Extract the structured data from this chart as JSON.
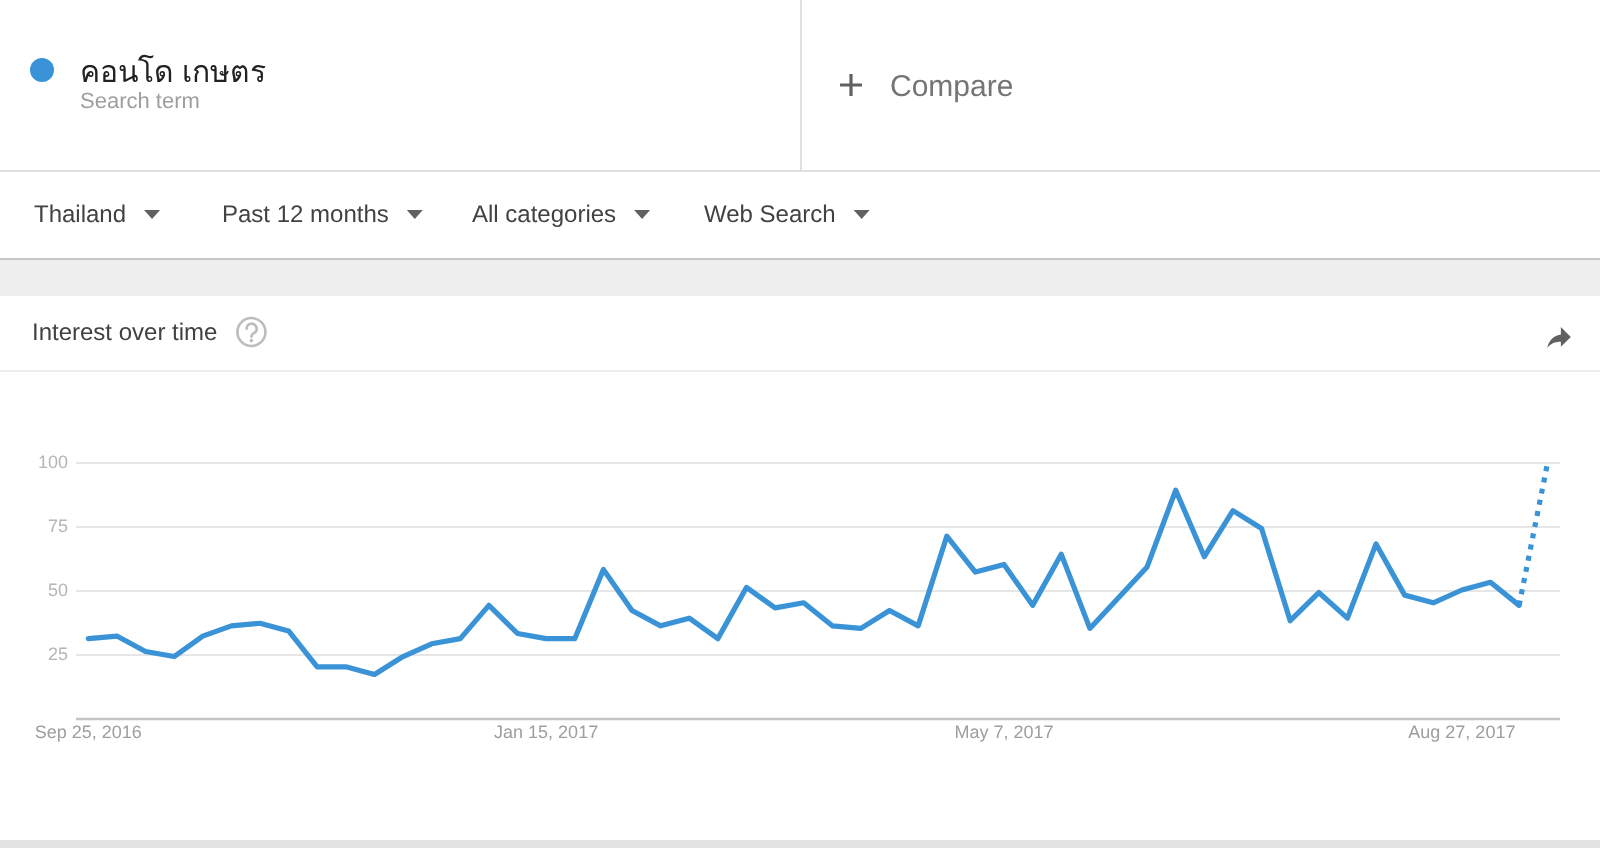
{
  "chart_data": {
    "type": "line",
    "title": "Interest over time",
    "x": [
      "2016-09-25",
      "2016-10-02",
      "2016-10-09",
      "2016-10-16",
      "2016-10-23",
      "2016-10-30",
      "2016-11-06",
      "2016-11-13",
      "2016-11-20",
      "2016-11-27",
      "2016-12-04",
      "2016-12-11",
      "2016-12-18",
      "2016-12-25",
      "2017-01-01",
      "2017-01-08",
      "2017-01-15",
      "2017-01-22",
      "2017-01-29",
      "2017-02-05",
      "2017-02-12",
      "2017-02-19",
      "2017-02-26",
      "2017-03-05",
      "2017-03-12",
      "2017-03-19",
      "2017-03-26",
      "2017-04-02",
      "2017-04-09",
      "2017-04-16",
      "2017-04-23",
      "2017-04-30",
      "2017-05-07",
      "2017-05-14",
      "2017-05-21",
      "2017-05-28",
      "2017-06-04",
      "2017-06-11",
      "2017-06-18",
      "2017-06-25",
      "2017-07-02",
      "2017-07-09",
      "2017-07-16",
      "2017-07-23",
      "2017-07-30",
      "2017-08-06",
      "2017-08-13",
      "2017-08-20",
      "2017-08-27",
      "2017-09-03",
      "2017-09-10"
    ],
    "xlim": [
      "2016-09-22",
      "2017-09-20"
    ],
    "xticks": [
      {
        "value": "2016-09-25",
        "label": "Sep 25, 2016"
      },
      {
        "value": "2017-01-15",
        "label": "Jan 15, 2017"
      },
      {
        "value": "2017-05-07",
        "label": "May 7, 2017"
      },
      {
        "value": "2017-08-27",
        "label": "Aug 27, 2017"
      }
    ],
    "ylim": [
      0,
      100
    ],
    "yticks": [
      25,
      50,
      75,
      100
    ],
    "grid": "y",
    "legend": "top left",
    "series": [
      {
        "name": "คอนโด เกษตร",
        "color": "#3a93d6",
        "line_style": "solid",
        "values": [
          31,
          32,
          26,
          24,
          32,
          36,
          37,
          34,
          20,
          20,
          17,
          24,
          29,
          31,
          44,
          33,
          31,
          31,
          58,
          42,
          36,
          39,
          31,
          51,
          43,
          45,
          36,
          35,
          42,
          36,
          71,
          57,
          60,
          44,
          64,
          35,
          47,
          59,
          89,
          63,
          81,
          74,
          38,
          49,
          39,
          68,
          48,
          45,
          50,
          53,
          44
        ]
      },
      {
        "color": "#3a93d6",
        "line_style": "dotted",
        "x": [
          "2017-09-10",
          "2017-09-17"
        ],
        "values": [
          44,
          100
        ]
      }
    ],
    "annotations": [
      "Search term",
      "Compare",
      "Thailand",
      "Past 12 months",
      "All categories",
      "Web Search"
    ]
  }
}
